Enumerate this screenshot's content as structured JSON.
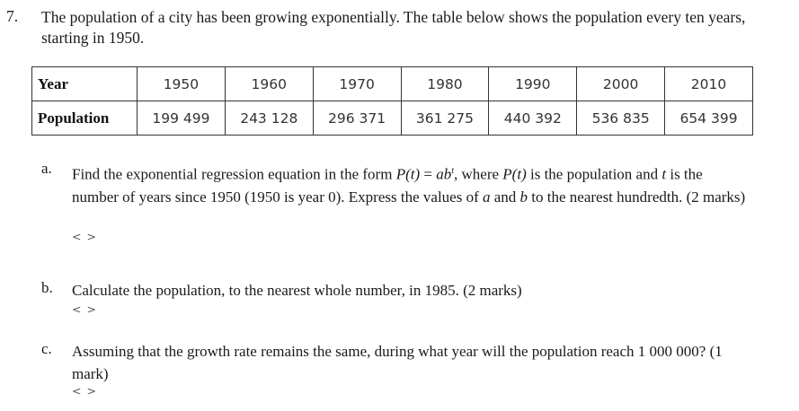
{
  "question": {
    "number": "7.",
    "stem": "The population of a city has been growing exponentially. The table below shows the population every ten years, starting in 1950."
  },
  "table": {
    "row_headers": [
      "Year",
      "Population"
    ],
    "years": [
      "1950",
      "1960",
      "1970",
      "1980",
      "1990",
      "2000",
      "2010"
    ],
    "populations": [
      "199 499",
      "243 128",
      "296 371",
      "361 275",
      "440 392",
      "536 835",
      "654 399"
    ]
  },
  "parts": [
    {
      "letter": "a.",
      "text_1": "Find the exponential regression equation in the form ",
      "formula_lhs": "P(t)",
      "formula_eq": " = ",
      "formula_base": "ab",
      "formula_exp": "t",
      "text_2": ", where ",
      "var_p": "P(t)",
      "text_3": " is the population and ",
      "var_t": "t",
      "text_4": " is the number of years since 1950 (1950 is year 0). Express the values of ",
      "var_a": "a",
      "text_5": " and ",
      "var_b": "b",
      "text_6": " to the nearest hundredth. (2 marks)",
      "reply_marker": "< >"
    },
    {
      "letter": "b.",
      "text": "Calculate the population, to the nearest whole number, in 1985. (2 marks)",
      "reply_marker": "< >"
    },
    {
      "letter": "c.",
      "text": "Assuming that the growth rate remains the same, during what year will the population reach 1 000 000? (1 mark)",
      "reply_marker": "< >"
    }
  ]
}
